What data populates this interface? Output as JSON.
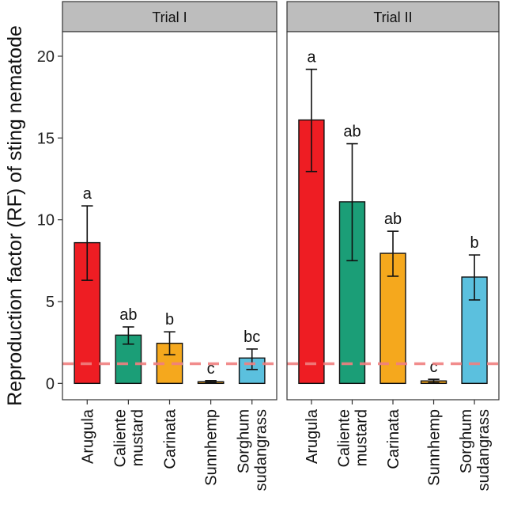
{
  "chart_data": {
    "type": "bar",
    "ylabel": "Reproduction factor (RF) of sting nematode",
    "xlabel": "",
    "ylim": [
      -1,
      21.5
    ],
    "yticks": [
      0,
      5,
      10,
      15,
      20
    ],
    "categories": [
      [
        "Arugula"
      ],
      [
        "Caliente",
        "mustard"
      ],
      [
        "Carinata"
      ],
      [
        "Sunnhemp"
      ],
      [
        "Sorghum",
        "sudangrass"
      ]
    ],
    "colors": [
      "#EE1D23",
      "#1B9E77",
      "#F5A81D",
      "#F5A81D",
      "#5BC0DE"
    ],
    "threshold": {
      "value": 1.2,
      "color": "#F08080",
      "style": "dashed"
    },
    "panels": [
      {
        "title": "Trial I",
        "values": [
          8.6,
          2.95,
          2.45,
          0.1,
          1.55
        ],
        "err_low": [
          6.3,
          2.4,
          1.75,
          0.03,
          0.85
        ],
        "err_high": [
          10.85,
          3.45,
          3.15,
          0.17,
          2.1
        ],
        "labels": [
          "a",
          "ab",
          "b",
          "c",
          "bc"
        ]
      },
      {
        "title": "Trial II",
        "values": [
          16.1,
          11.1,
          7.95,
          0.15,
          6.5
        ],
        "err_low": [
          12.95,
          7.5,
          6.55,
          0.05,
          5.1
        ],
        "err_high": [
          19.2,
          14.65,
          9.3,
          0.25,
          7.85
        ],
        "labels": [
          "a",
          "ab",
          "ab",
          "c",
          "b"
        ]
      }
    ]
  }
}
